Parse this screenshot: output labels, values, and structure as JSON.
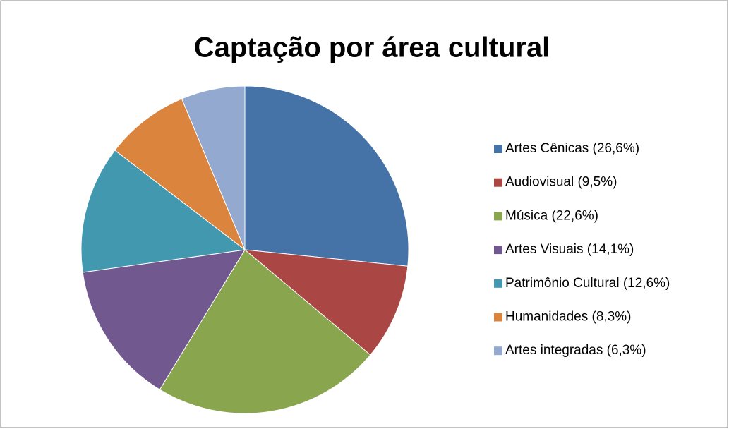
{
  "chart_data": {
    "type": "pie",
    "title": "Captação por área cultural",
    "categories": [
      "Artes Cênicas (26,6%)",
      "Audiovisual (9,5%)",
      "Música (22,6%)",
      "Artes Visuais (14,1%)",
      "Patrimônio Cultural (12,6%)",
      "Humanidades (8,3%)",
      "Artes integradas (6,3%)"
    ],
    "values": [
      26.6,
      9.5,
      22.6,
      14.1,
      12.6,
      8.3,
      6.3
    ],
    "colors": [
      "#4572a7",
      "#aa4643",
      "#89a54e",
      "#71588f",
      "#4198af",
      "#db843d",
      "#93a9cf"
    ],
    "legend": "right"
  }
}
